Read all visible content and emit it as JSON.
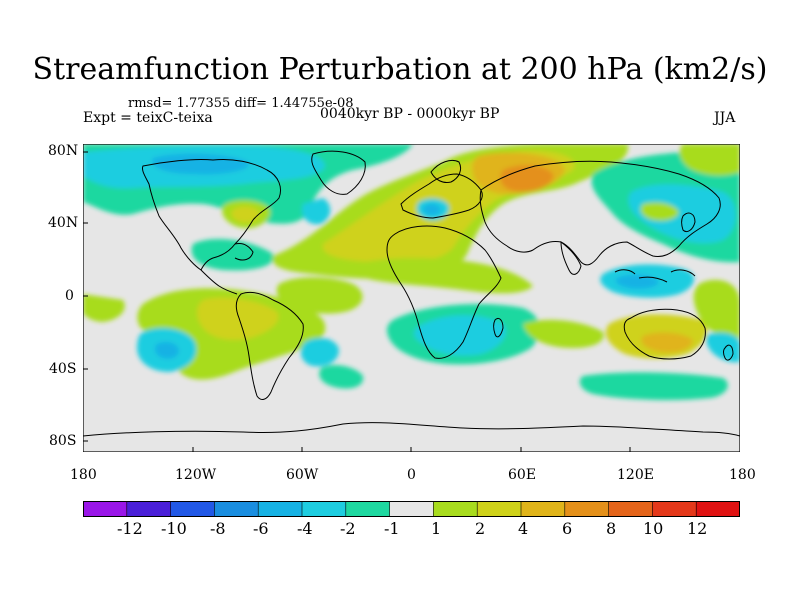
{
  "header": {
    "title": "Streamfunction Perturbation at 200 hPa (km2/s)",
    "stats": "rmsd= 1.77355 diff= 1.44755e-08",
    "experiment": "Expt = teixC-teixa",
    "period": "0040kyr BP - 0000kyr BP",
    "season": "JJA"
  },
  "axes": {
    "lat_ticks": [
      "80N",
      "40N",
      "0",
      "40S",
      "80S"
    ],
    "lon_ticks": [
      "180",
      "120W",
      "60W",
      "0",
      "60E",
      "120E",
      "180"
    ]
  },
  "colorbar": {
    "labels": [
      "-12",
      "-10",
      "-8",
      "-6",
      "-4",
      "-2",
      "-1",
      "1",
      "2",
      "4",
      "6",
      "8",
      "10",
      "12"
    ],
    "colors": [
      "#9a16e8",
      "#4a1fd8",
      "#2258e6",
      "#1a8ee0",
      "#16b2e4",
      "#1ecde0",
      "#1ed8a0",
      "#e6e6e6",
      "#a8dc1e",
      "#cfd21a",
      "#e0b41a",
      "#e4901a",
      "#e4641a",
      "#e4381a",
      "#e01212"
    ]
  }
}
